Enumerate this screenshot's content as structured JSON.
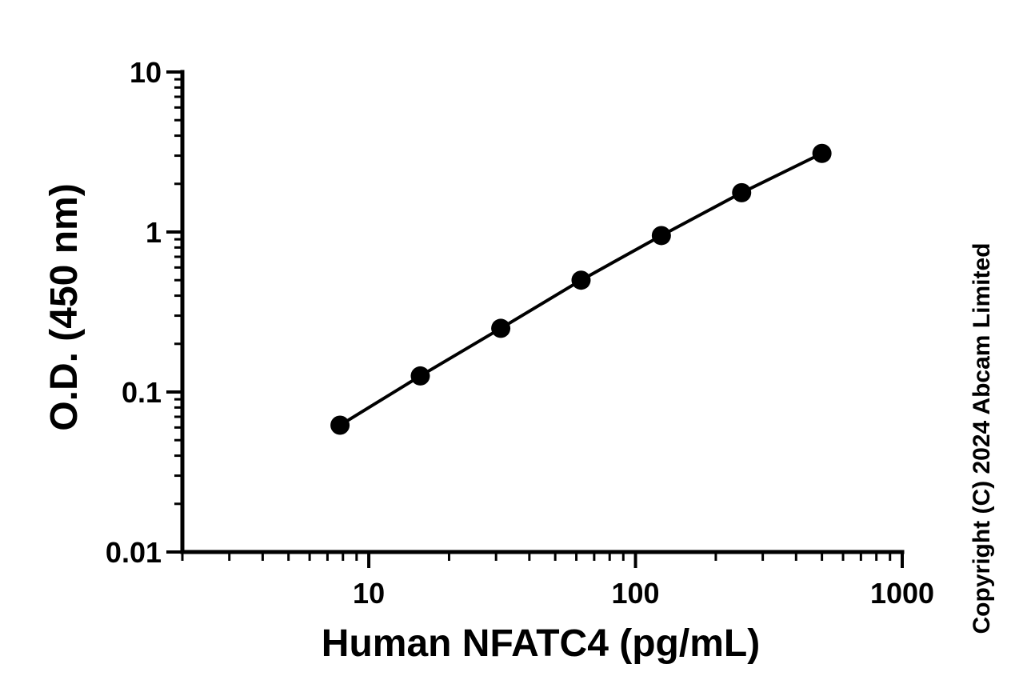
{
  "chart_data": {
    "type": "line",
    "title": "",
    "xlabel": "Human NFATC4 (pg/mL)",
    "ylabel": "O.D. (450 nm)",
    "x_scale": "log",
    "y_scale": "log",
    "xlim": [
      2,
      1000
    ],
    "ylim": [
      0.01,
      10
    ],
    "x_ticks": [
      10,
      100,
      1000
    ],
    "x_tick_labels": [
      "10",
      "100",
      "1000"
    ],
    "y_ticks": [
      0.01,
      0.1,
      1,
      10
    ],
    "y_tick_labels": [
      "0.01",
      "0.1",
      "1",
      "10"
    ],
    "grid": false,
    "legend": "none",
    "series": [
      {
        "x": [
          7.8,
          15.6,
          31.25,
          62.5,
          125,
          250,
          500
        ],
        "y": [
          0.062,
          0.126,
          0.25,
          0.5,
          0.95,
          1.76,
          3.1
        ],
        "color": "#000000",
        "marker": "circle"
      }
    ],
    "annotations": [
      "Copyright (C) 2024 Abcam Limited"
    ]
  }
}
